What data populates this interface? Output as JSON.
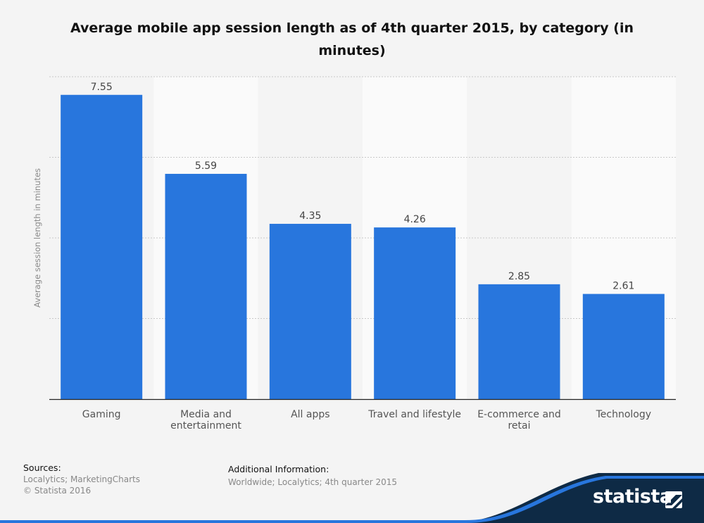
{
  "chart_data": {
    "type": "bar",
    "title": "Average mobile app session length as of 4th quarter 2015, by category (in minutes)",
    "ylabel": "Average session length in minutes",
    "xlabel": "",
    "categories": [
      "Gaming",
      "Media and entertainment",
      "All apps",
      "Travel and lifestyle",
      "E-commerce and retai",
      "Technology"
    ],
    "values": [
      7.55,
      5.59,
      4.35,
      4.26,
      2.85,
      2.61
    ],
    "data_labels": [
      "7.55",
      "5.59",
      "4.35",
      "4.26",
      "2.85",
      "2.61"
    ],
    "ylim": [
      0,
      8
    ],
    "grid": true,
    "colors": {
      "bar": "#2876dd",
      "band_light": "#fafafa",
      "band_dark": "#f4f4f4"
    }
  },
  "footer": {
    "sources_label": "Sources:",
    "sources_text": "Localytics; MarketingCharts",
    "copyright": "© Statista 2016",
    "additional_label": "Additional Information:",
    "additional_text": "Worldwide; Localytics; 4th quarter 2015"
  },
  "brand": {
    "logo_text": "statista",
    "logo_icon": "statista-logo-icon"
  }
}
